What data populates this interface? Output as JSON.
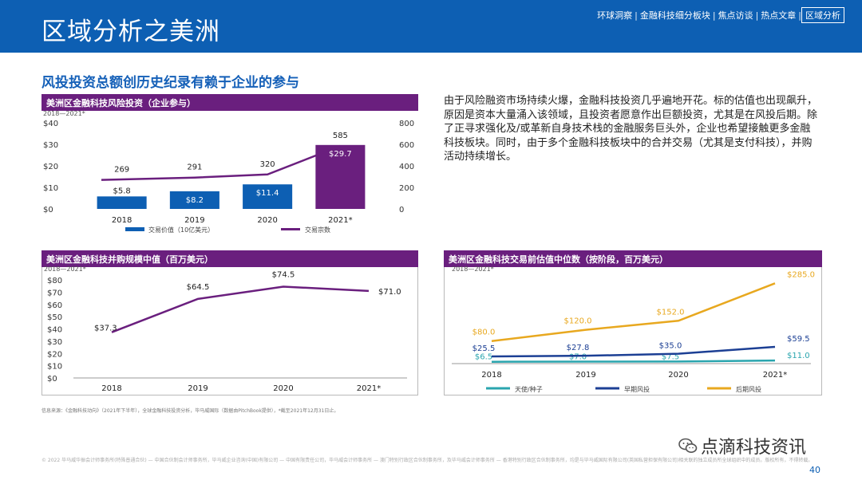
{
  "header": {
    "title": "区域分析之美洲",
    "nav": [
      "环球洞察",
      "金融科技细分板块",
      "焦点访谈",
      "热点文章",
      "区域分析"
    ],
    "active_nav": "区域分析"
  },
  "subtitle": "风投投资总额创历史纪录有赖于企业的参与",
  "paragraph": "由于风险融资市场持续火爆，金融科技投资几乎遍地开花。标的估值也出现飙升，原因是资本大量涌入该领域，且投资者愿意作出巨额投资，尤其是在风投后期。除了正寻求强化及/或革新自身技术栈的金融服务巨头外，企业也希望接触更多金融科技板块。同时，由于多个金融科技板块中的合并交易（尤其是支付科技），并购活动持续增长。",
  "source": "信息来源：《金融科技动向》（2021年下半年），全球金融科技投资分析，毕马威国际（数据由PitchBook提供），*截至2021年12月31日止。",
  "footer": "© 2022 毕马威华振会计师事务所(特殊普通合伙) — 中国合伙制会计师事务所，毕马威企业咨询(中国)有限公司 — 中国有限责任公司，毕马威会计师事务所 — 澳门特别行政区合伙制事务所，及毕马威会计师事务所 — 香港特别行政区合伙制事务所，均是与毕马威国际有限公司(英国私营担保有限公司)相关联的独立成员所全球组织中的成员。版权所有，不得转载。",
  "page_number": "40",
  "watermark": "点滴科技资讯",
  "colors": {
    "header": "#0d5fb3",
    "purple": "#6a1f7e",
    "bar": "#0d5fb3",
    "orange": "#e8a81f",
    "navy": "#1c3f94",
    "teal": "#2aa5ae"
  },
  "chart_data": [
    {
      "type": "bar",
      "title": "美洲区金融科技风险投资（企业参与）",
      "subtitle": "2018—2021*",
      "categories": [
        "2018",
        "2019",
        "2020",
        "2021*"
      ],
      "series": [
        {
          "name": "交易价值（10亿美元）",
          "type": "bar",
          "axis": "left",
          "values": [
            5.8,
            8.2,
            11.4,
            29.7
          ],
          "labels": [
            "$5.8",
            "$8.2",
            "$11.4",
            "$29.7"
          ]
        },
        {
          "name": "交易宗数",
          "type": "line",
          "axis": "right",
          "values": [
            269,
            291,
            320,
            585
          ],
          "labels": [
            "269",
            "291",
            "320",
            "585"
          ]
        }
      ],
      "ylim_left": [
        0,
        40
      ],
      "yticks_left": [
        "$0",
        "$10",
        "$20",
        "$30",
        "$40"
      ],
      "ylim_right": [
        0,
        800
      ],
      "yticks_right": [
        "0",
        "200",
        "400",
        "600",
        "800"
      ],
      "legend": "bottom"
    },
    {
      "type": "line",
      "title": "美洲区金融科技并购规模中值（百万美元）",
      "subtitle": "2018—2021*",
      "categories": [
        "2018",
        "2019",
        "2020",
        "2021*"
      ],
      "series": [
        {
          "values": [
            37.3,
            64.5,
            74.5,
            71.0
          ],
          "labels": [
            "$37.3",
            "$64.5",
            "$74.5",
            "$71.0"
          ]
        }
      ],
      "ylim": [
        0,
        80
      ],
      "yticks": [
        "$0",
        "$10",
        "$20",
        "$30",
        "$40",
        "$50",
        "$60",
        "$70",
        "$80"
      ]
    },
    {
      "type": "line",
      "title": "美洲区金融科技交易前估值中位数（按阶段，百万美元）",
      "subtitle": "2018—2021*",
      "categories": [
        "2018",
        "2019",
        "2020",
        "2021*"
      ],
      "series": [
        {
          "name": "天使/种子",
          "values": [
            6.5,
            7.0,
            7.5,
            11.0
          ],
          "labels": [
            "$6.5",
            "$7.0",
            "$7.5",
            "$11.0"
          ]
        },
        {
          "name": "早期风投",
          "values": [
            25.5,
            27.8,
            35.0,
            59.5
          ],
          "labels": [
            "$25.5",
            "$27.8",
            "$35.0",
            "$59.5"
          ]
        },
        {
          "name": "后期风投",
          "values": [
            80.0,
            120.0,
            152.0,
            285.0
          ],
          "labels": [
            "$80.0",
            "$120.0",
            "$152.0",
            "$285.0"
          ]
        }
      ],
      "ylim": [
        0,
        300
      ],
      "legend": "bottom"
    }
  ]
}
